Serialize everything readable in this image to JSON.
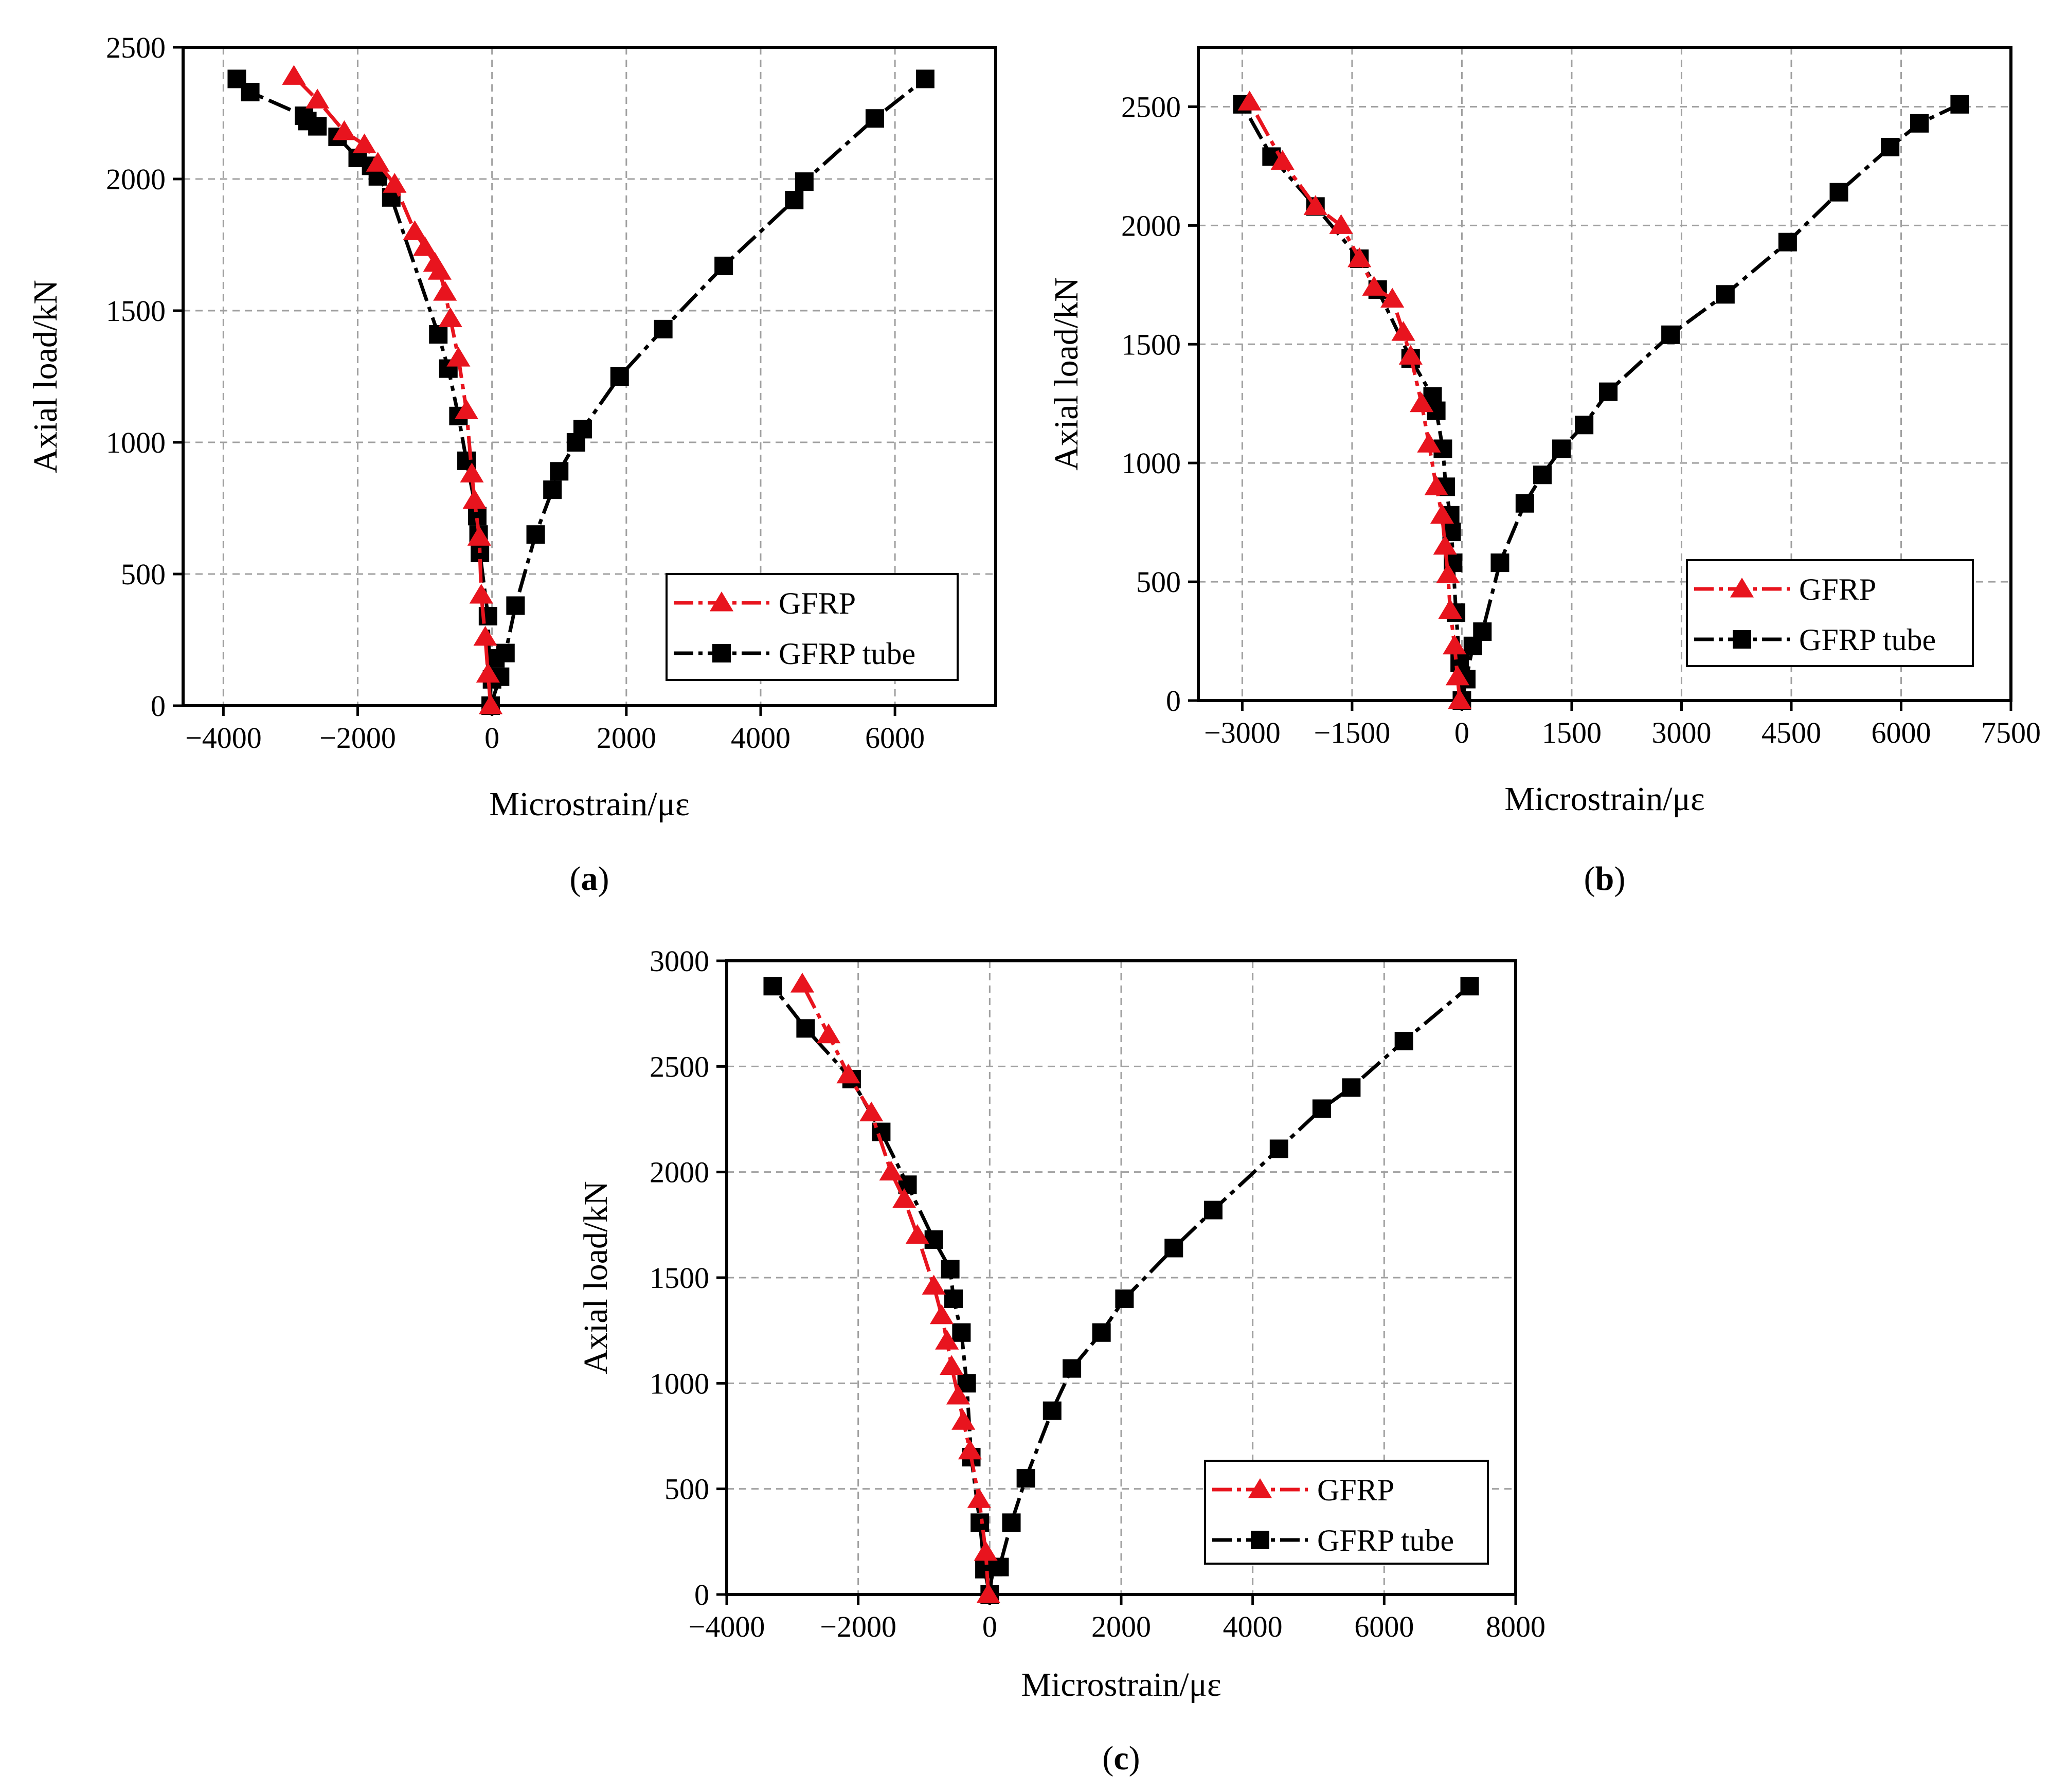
{
  "figure": {
    "series_colors": {
      "gfrp": "#e8141e",
      "gfrp_tube": "#000000"
    },
    "grid_color": "#a0a0a0"
  },
  "chart_data": [
    {
      "type": "line",
      "panel_label": "(a)",
      "panel_letter": "a",
      "title": "",
      "xlabel": "Microstrain/με",
      "ylabel": "Axial load/kN",
      "xlim": [
        -4600,
        7500
      ],
      "ylim": [
        0,
        2500
      ],
      "xticks": [
        -4000,
        -2000,
        0,
        2000,
        4000,
        6000
      ],
      "xtick_labels": [
        "−4000",
        "−2000",
        "0",
        "2000",
        "4000",
        "6000"
      ],
      "yticks": [
        0,
        500,
        1000,
        1500,
        2000,
        2500
      ],
      "ytick_labels": [
        "0",
        "500",
        "1000",
        "1500",
        "2000",
        "2500"
      ],
      "grid": true,
      "legend_position": "bottom-right",
      "series": [
        {
          "name": "GFRP",
          "marker": "triangle",
          "color": "#e8141e",
          "x": [
            -20,
            -60,
            -100,
            -160,
            -190,
            -260,
            -300,
            -380,
            -500,
            -620,
            -700,
            -780,
            -850,
            -1000,
            -1150,
            -1450,
            -1700,
            -1900,
            -2200,
            -2600,
            -2950
          ],
          "y": [
            0,
            120,
            260,
            420,
            640,
            780,
            880,
            1120,
            1320,
            1470,
            1570,
            1650,
            1680,
            1740,
            1800,
            1980,
            2060,
            2130,
            2180,
            2300,
            2390
          ]
        },
        {
          "name": "GFRP tube",
          "marker": "square",
          "color": "#000000",
          "x": [
            -20,
            0,
            50,
            120,
            200,
            350,
            650,
            900,
            1000,
            1250,
            1350,
            1900,
            2550,
            3450,
            4500,
            4650,
            5700,
            6450,
            -60,
            -180,
            -200,
            -220,
            -380,
            -500,
            -650,
            -800,
            -1500,
            -1700,
            -1800,
            -2000,
            -2300,
            -2600,
            -2750,
            -2800,
            -3600,
            -3800
          ],
          "y": [
            0,
            100,
            180,
            110,
            200,
            380,
            650,
            820,
            890,
            1000,
            1050,
            1250,
            1430,
            1670,
            1920,
            1990,
            2230,
            2380,
            340,
            580,
            650,
            720,
            930,
            1100,
            1280,
            1410,
            1930,
            2010,
            2050,
            2080,
            2160,
            2200,
            2220,
            2240,
            2330,
            2380
          ]
        }
      ]
    },
    {
      "type": "line",
      "panel_label": "(b)",
      "panel_letter": "b",
      "title": "",
      "xlabel": "Microstrain/με",
      "ylabel": "Axial load/kN",
      "xlim": [
        -3600,
        7500
      ],
      "ylim": [
        0,
        2750
      ],
      "xticks": [
        -3000,
        -1500,
        0,
        1500,
        3000,
        4500,
        6000,
        7500
      ],
      "xtick_labels": [
        "−3000",
        "−1500",
        "0",
        "1500",
        "3000",
        "4500",
        "6000",
        "7500"
      ],
      "yticks": [
        0,
        500,
        1000,
        1500,
        2000,
        2500
      ],
      "ytick_labels": [
        "0",
        "500",
        "1000",
        "1500",
        "2000",
        "2500"
      ],
      "grid": true,
      "legend_position": "bottom-right",
      "series": [
        {
          "name": "GFRP",
          "marker": "triangle",
          "color": "#e8141e",
          "x": [
            -30,
            -60,
            -100,
            -160,
            -190,
            -230,
            -270,
            -350,
            -450,
            -550,
            -700,
            -800,
            -950,
            -1200,
            -1400,
            -1650,
            -2000,
            -2450,
            -2900
          ],
          "y": [
            0,
            100,
            230,
            380,
            530,
            650,
            780,
            900,
            1080,
            1250,
            1450,
            1550,
            1690,
            1740,
            1860,
            2000,
            2080,
            2270,
            2520
          ]
        },
        {
          "name": "GFRP tube",
          "marker": "square",
          "color": "#000000",
          "x": [
            0,
            60,
            150,
            280,
            520,
            860,
            1100,
            1360,
            1670,
            2000,
            2850,
            3600,
            4450,
            5150,
            5850,
            6250,
            6800,
            -30,
            -80,
            -120,
            -140,
            -160,
            -220,
            -260,
            -350,
            -400,
            -700,
            -1150,
            -1400,
            -2000,
            -2600,
            -3000
          ],
          "y": [
            0,
            90,
            230,
            290,
            580,
            830,
            950,
            1060,
            1160,
            1300,
            1540,
            1710,
            1930,
            2140,
            2330,
            2430,
            2510,
            160,
            370,
            580,
            710,
            780,
            900,
            1060,
            1220,
            1280,
            1440,
            1730,
            1860,
            2080,
            2290,
            2510
          ]
        }
      ]
    },
    {
      "type": "line",
      "panel_label": "(c)",
      "panel_letter": "c",
      "title": "",
      "xlabel": "Microstrain/με",
      "ylabel": "Axial load/kN",
      "xlim": [
        -4000,
        8000
      ],
      "ylim": [
        0,
        3000
      ],
      "xticks": [
        -4000,
        -2000,
        0,
        2000,
        4000,
        6000,
        8000
      ],
      "xtick_labels": [
        "−4000",
        "−2000",
        "0",
        "2000",
        "4000",
        "6000",
        "8000"
      ],
      "yticks": [
        0,
        500,
        1000,
        1500,
        2000,
        2500,
        3000
      ],
      "ytick_labels": [
        "0",
        "500",
        "1000",
        "1500",
        "2000",
        "2500",
        "3000"
      ],
      "grid": true,
      "legend_position": "bottom-right",
      "series": [
        {
          "name": "GFRP",
          "marker": "triangle",
          "color": "#e8141e",
          "x": [
            -20,
            -60,
            -160,
            -300,
            -400,
            -480,
            -580,
            -650,
            -730,
            -850,
            -1100,
            -1300,
            -1500,
            -1800,
            -2150,
            -2450,
            -2850
          ],
          "y": [
            0,
            200,
            450,
            680,
            820,
            940,
            1080,
            1200,
            1320,
            1460,
            1700,
            1870,
            2000,
            2280,
            2460,
            2650,
            2890
          ]
        },
        {
          "name": "GFRP tube",
          "marker": "square",
          "color": "#000000",
          "x": [
            0,
            50,
            150,
            330,
            550,
            950,
            1250,
            1700,
            2050,
            2800,
            3400,
            4400,
            5050,
            5500,
            6300,
            7300,
            -80,
            -150,
            -280,
            -350,
            -430,
            -550,
            -600,
            -850,
            -1250,
            -1650,
            -2100,
            -2800,
            -3300
          ],
          "y": [
            0,
            130,
            130,
            340,
            550,
            870,
            1070,
            1240,
            1400,
            1640,
            1820,
            2110,
            2300,
            2400,
            2620,
            2880,
            120,
            340,
            650,
            1000,
            1240,
            1400,
            1540,
            1680,
            1940,
            2190,
            2440,
            2680,
            2880
          ]
        }
      ]
    }
  ]
}
